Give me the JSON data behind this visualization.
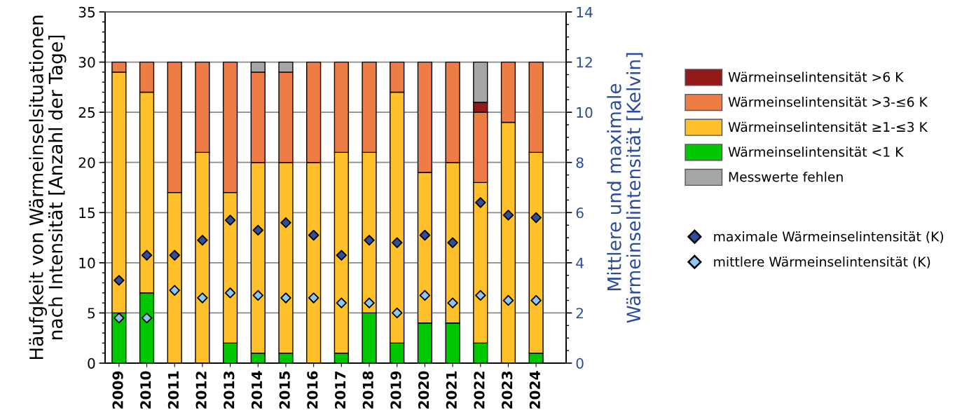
{
  "chart_data": {
    "type": "bar",
    "stacked": true,
    "categories": [
      "2009",
      "2010",
      "2011",
      "2012",
      "2013",
      "2014",
      "2015",
      "2016",
      "2017",
      "2018",
      "2019",
      "2020",
      "2021",
      "2022",
      "2023",
      "2024"
    ],
    "series": [
      {
        "name": "Wärmeinselintensität <1 K",
        "color": "#00c800",
        "values": [
          5,
          7,
          0,
          0,
          2,
          1,
          1,
          0,
          1,
          5,
          2,
          4,
          4,
          2,
          0,
          1
        ]
      },
      {
        "name": "Wärmeinselintensität ≥1-≤3 K",
        "color": "#ffc02a",
        "values": [
          24,
          20,
          17,
          21,
          15,
          19,
          19,
          20,
          20,
          16,
          25,
          15,
          16,
          16,
          24,
          20
        ]
      },
      {
        "name": "Wärmeinselintensität >3-≤6 K",
        "color": "#ed7d44",
        "values": [
          1,
          3,
          13,
          9,
          13,
          9,
          9,
          10,
          9,
          9,
          3,
          11,
          10,
          7,
          6,
          9
        ]
      },
      {
        "name": "Wärmeinselintensität >6 K",
        "color": "#931a1a",
        "values": [
          0,
          0,
          0,
          0,
          0,
          0,
          0,
          0,
          0,
          0,
          0,
          0,
          0,
          1,
          0,
          0
        ]
      },
      {
        "name": "Messwerte fehlen",
        "color": "#a6a6a6",
        "values": [
          0,
          0,
          0,
          0,
          0,
          1,
          1,
          0,
          0,
          0,
          0,
          0,
          0,
          4,
          0,
          0
        ]
      },
      {
        "name": "maximale Wärmeinselintensität (K)",
        "type": "scatter",
        "axis": "y2",
        "color": "#2f4f96",
        "values": [
          3.3,
          4.3,
          4.3,
          4.9,
          5.7,
          5.3,
          5.6,
          5.1,
          4.3,
          4.9,
          4.8,
          5.1,
          4.8,
          6.4,
          5.9,
          5.8
        ]
      },
      {
        "name": "mittlere Wärmeinselintensität (K)",
        "type": "scatter",
        "axis": "y2",
        "color": "#8dc8f2",
        "values": [
          1.8,
          1.8,
          2.9,
          2.6,
          2.8,
          2.7,
          2.6,
          2.6,
          2.4,
          2.4,
          2.0,
          2.7,
          2.4,
          2.7,
          2.5,
          2.5
        ]
      }
    ],
    "ylabel": "Häufgkeit von Wärmeinselsituationen\nnach Intensität [Anzahl der Tage]",
    "y2label": "Mittlere und maximale\nWärmeinselintensität [Kelvin]",
    "ylim": [
      0,
      35
    ],
    "yticks": [
      0,
      {
        "value": 1,
        "label": null
      },
      {
        "value": 2,
        "label": null
      },
      {
        "value": 3,
        "label": null
      },
      {
        "value": 4,
        "label": null
      },
      5,
      {
        "value": 6,
        "label": null
      },
      {
        "value": 7,
        "label": null
      },
      {
        "value": 8,
        "label": null
      },
      {
        "value": 9,
        "label": null
      },
      10,
      {
        "value": 11,
        "label": null
      },
      {
        "value": 12,
        "label": null
      },
      {
        "value": 13,
        "label": null
      },
      {
        "value": 14,
        "label": null
      },
      15,
      {
        "value": 16,
        "label": null
      },
      {
        "value": 17,
        "label": null
      },
      {
        "value": 18,
        "label": null
      },
      {
        "value": 19,
        "label": null
      },
      20,
      {
        "value": 21,
        "label": null
      },
      {
        "value": 22,
        "label": null
      },
      {
        "value": 23,
        "label": null
      },
      {
        "value": 24,
        "label": null
      },
      25,
      {
        "value": 26,
        "label": null
      },
      {
        "value": 27,
        "label": null
      },
      {
        "value": 28,
        "label": null
      },
      {
        "value": 29,
        "label": null
      },
      30,
      {
        "value": 31,
        "label": null
      },
      {
        "value": 32,
        "label": null
      },
      {
        "value": 33,
        "label": null
      },
      {
        "value": 34,
        "label": null
      },
      35
    ],
    "y2lim": [
      0,
      14
    ],
    "y2ticks": [
      0,
      {
        "value": 0.5,
        "label": null
      },
      {
        "value": 1,
        "label": null
      },
      {
        "value": 1.5,
        "label": null
      },
      2,
      {
        "value": 2.5,
        "label": null
      },
      {
        "value": 3,
        "label": null
      },
      {
        "value": 3.5,
        "label": null
      },
      4,
      {
        "value": 4.5,
        "label": null
      },
      {
        "value": 5,
        "label": null
      },
      {
        "value": 5.5,
        "label": null
      },
      6,
      {
        "value": 6.5,
        "label": null
      },
      {
        "value": 7,
        "label": null
      },
      {
        "value": 7.5,
        "label": null
      },
      8,
      {
        "value": 8.5,
        "label": null
      },
      {
        "value": 9,
        "label": null
      },
      {
        "value": 9.5,
        "label": null
      },
      10,
      {
        "value": 10.5,
        "label": null
      },
      {
        "value": 11,
        "label": null
      },
      {
        "value": 11.5,
        "label": null
      },
      12,
      {
        "value": 12.5,
        "label": null
      },
      {
        "value": 13,
        "label": null
      },
      {
        "value": 13.5,
        "label": null
      },
      14
    ],
    "grid": "y",
    "legend": "right",
    "marker": "diamond"
  }
}
